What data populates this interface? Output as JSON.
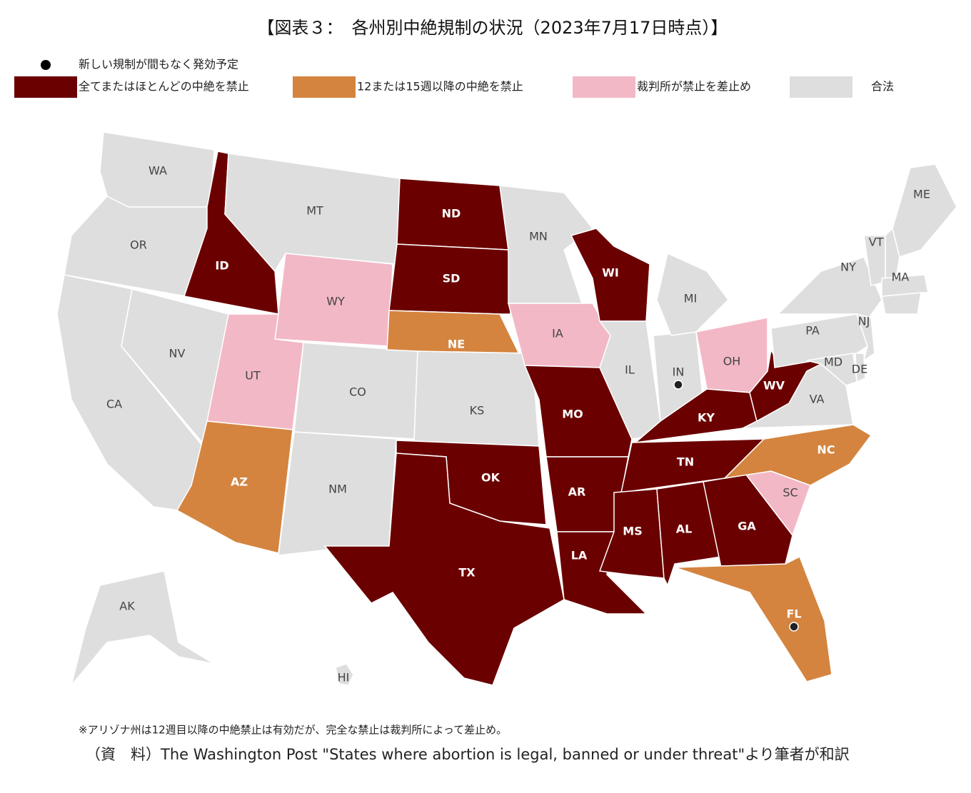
{
  "title": "【図表３：　各州別中絶規制の状況（2023年7月17日時点）】",
  "legend": {
    "pending": "新しい規制が間もなく発効予定",
    "categories": [
      {
        "label": "全てまたはほとんどの中絶を禁止",
        "color": "#6b0000"
      },
      {
        "label": "12または15週以降の中絶を禁止",
        "color": "#d4843f"
      },
      {
        "label": "裁判所が禁止を差止め",
        "color": "#f2b8c6"
      },
      {
        "label": "合法",
        "color": "#dedede"
      }
    ]
  },
  "states": [
    {
      "label": "WA",
      "status": 3
    },
    {
      "label": "OR",
      "status": 3
    },
    {
      "label": "CA",
      "status": 3
    },
    {
      "label": "NV",
      "status": 3
    },
    {
      "label": "ID",
      "status": 0
    },
    {
      "label": "MT",
      "status": 3
    },
    {
      "label": "WY",
      "status": 2
    },
    {
      "label": "UT",
      "status": 2
    },
    {
      "label": "CO",
      "status": 3
    },
    {
      "label": "AZ",
      "status": 1
    },
    {
      "label": "NM",
      "status": 3
    },
    {
      "label": "ND",
      "status": 0
    },
    {
      "label": "SD",
      "status": 0
    },
    {
      "label": "NE",
      "status": 1
    },
    {
      "label": "KS",
      "status": 3
    },
    {
      "label": "OK",
      "status": 0
    },
    {
      "label": "TX",
      "status": 0
    },
    {
      "label": "MN",
      "status": 3
    },
    {
      "label": "IA",
      "status": 2
    },
    {
      "label": "MO",
      "status": 0
    },
    {
      "label": "AR",
      "status": 0
    },
    {
      "label": "LA",
      "status": 0
    },
    {
      "label": "WI",
      "status": 0
    },
    {
      "label": "IL",
      "status": 3
    },
    {
      "label": "IN",
      "status": 3,
      "pending": true
    },
    {
      "label": "MI",
      "status": 3
    },
    {
      "label": "OH",
      "status": 2
    },
    {
      "label": "KY",
      "status": 0
    },
    {
      "label": "TN",
      "status": 0
    },
    {
      "label": "MS",
      "status": 0
    },
    {
      "label": "AL",
      "status": 0
    },
    {
      "label": "GA",
      "status": 0
    },
    {
      "label": "FL",
      "status": 1,
      "pending": true
    },
    {
      "label": "SC",
      "status": 2
    },
    {
      "label": "NC",
      "status": 1
    },
    {
      "label": "VA",
      "status": 3
    },
    {
      "label": "WV",
      "status": 0
    },
    {
      "label": "PA",
      "status": 3
    },
    {
      "label": "NY",
      "status": 3
    },
    {
      "label": "MD",
      "status": 3
    },
    {
      "label": "DE",
      "status": 3
    },
    {
      "label": "NJ",
      "status": 3
    },
    {
      "label": "VT",
      "status": 3
    },
    {
      "label": "MA",
      "status": 3
    },
    {
      "label": "ME",
      "status": 3
    },
    {
      "label": "AK",
      "status": 3
    },
    {
      "label": "HI",
      "status": 3
    }
  ],
  "note": "※アリゾナ州は12週目以降の中絶禁止は有効だが、完全な禁止は裁判所によって差止め。",
  "source": "（資　料）The Washington Post \"States where abortion is legal, banned or under threat\"より筆者が和訳"
}
